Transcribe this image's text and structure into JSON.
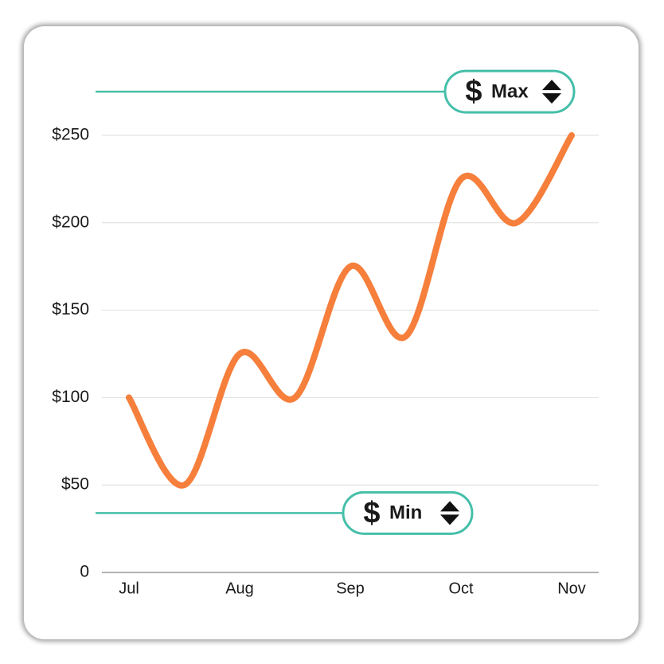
{
  "chart_data": {
    "type": "line",
    "categories": [
      "Jul",
      null,
      "Aug",
      null,
      "Sep",
      null,
      "Oct",
      null,
      "Nov"
    ],
    "series": [
      {
        "color": "#f67f3c",
        "values": [
          100,
          50,
          125,
          100,
          175,
          135,
          225,
          200,
          250
        ]
      }
    ],
    "ylim": [
      0,
      250
    ],
    "yticks": [
      0,
      {
        "value": 50,
        "label": "$50"
      },
      {
        "value": 100,
        "label": "$100"
      },
      {
        "value": 150,
        "label": "$150"
      },
      {
        "value": 200,
        "label": "$200"
      },
      {
        "value": 250,
        "label": "$250"
      }
    ],
    "grid": true,
    "thresholds": [
      {
        "label": "Max",
        "value": 275,
        "color": "#45bfa9"
      },
      {
        "label": "Min",
        "value": 34,
        "color": "#45bfa9"
      }
    ]
  }
}
